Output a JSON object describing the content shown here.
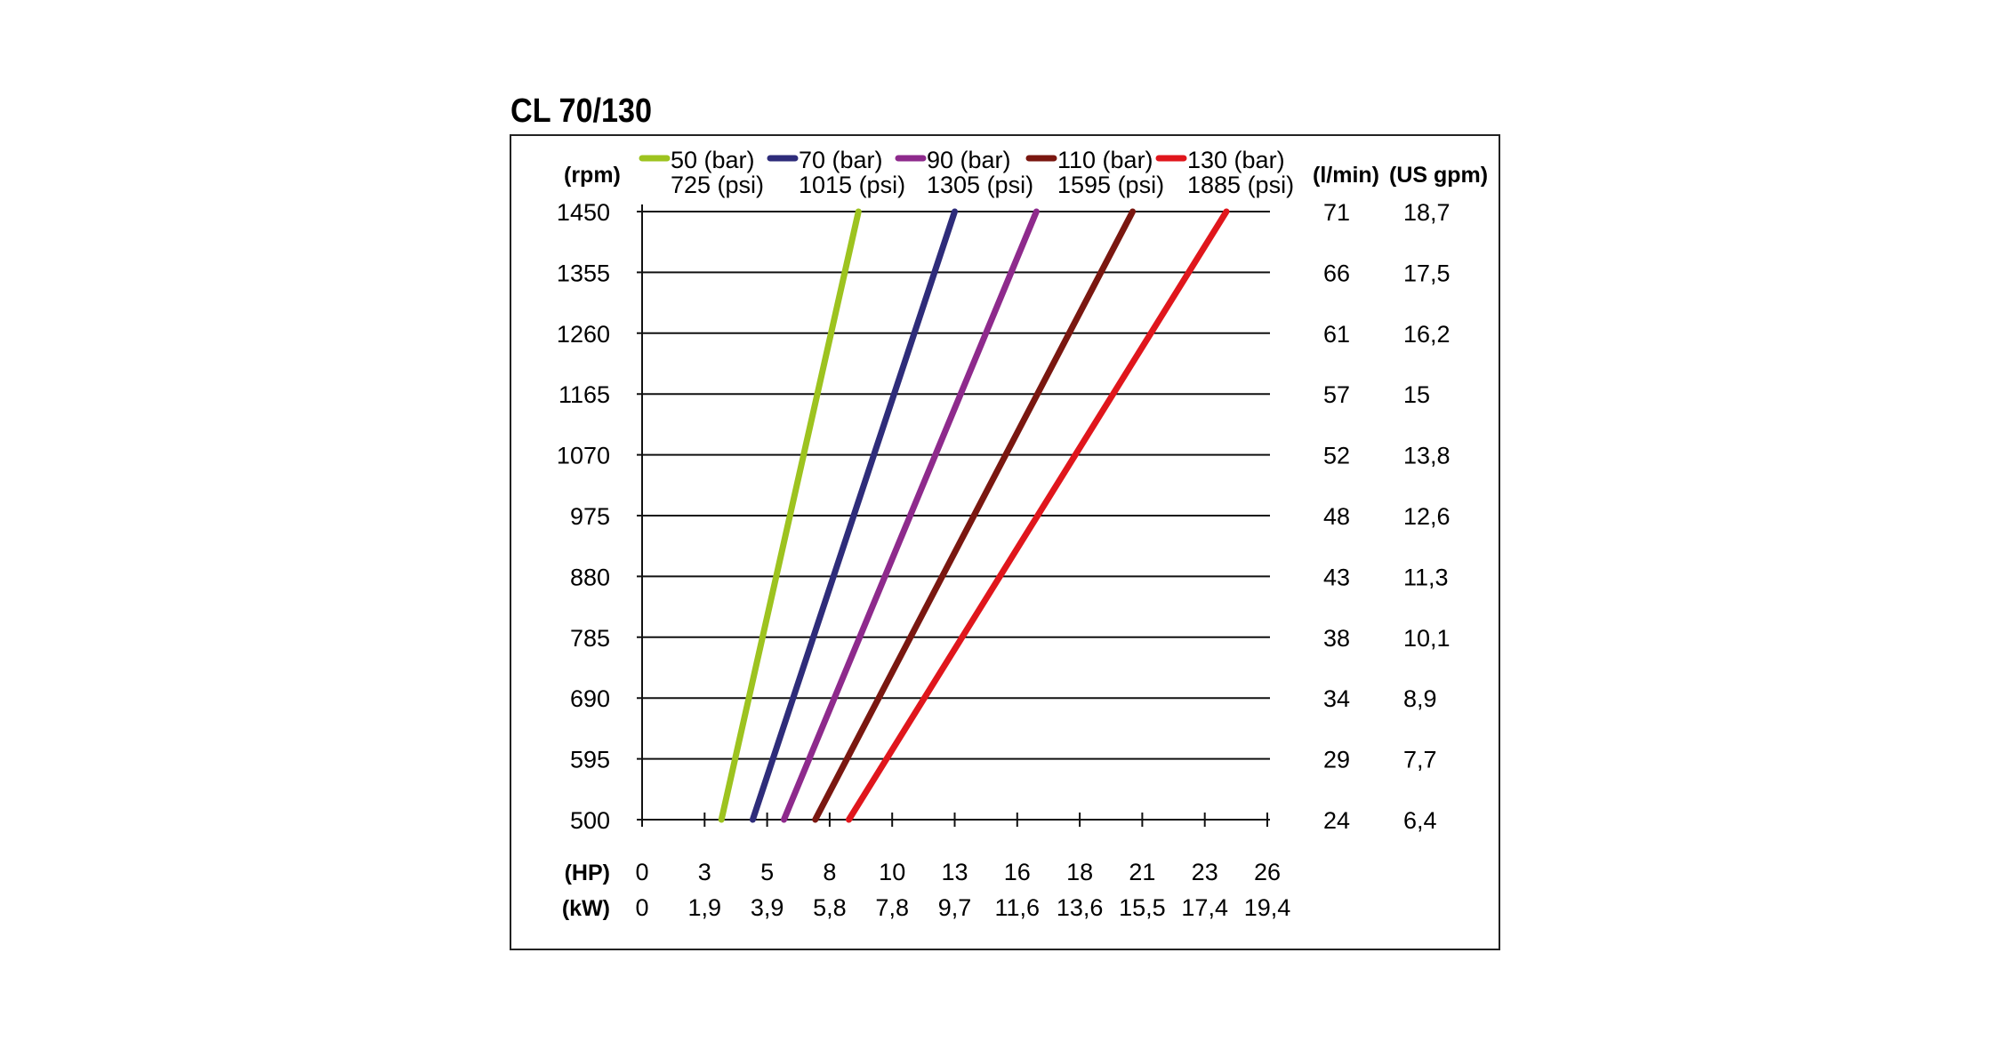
{
  "chart_data": {
    "type": "line",
    "title": "CL 70/130",
    "y_unit": "(rpm)",
    "y_ticks": [
      "1450",
      "1355",
      "1260",
      "1165",
      "1070",
      "975",
      "880",
      "785",
      "690",
      "595",
      "500"
    ],
    "ylim": [
      500,
      1450
    ],
    "right_unit_1": "(l/min)",
    "right_ticks_1": [
      "71",
      "66",
      "61",
      "57",
      "52",
      "48",
      "43",
      "38",
      "34",
      "29",
      "24"
    ],
    "right_unit_2": "(US gpm)",
    "right_ticks_2": [
      "18,7",
      "17,5",
      "16,2",
      "15",
      "13,8",
      "12,6",
      "11,3",
      "10,1",
      "8,9",
      "7,7",
      "6,4"
    ],
    "x_unit_1": "(HP)",
    "x_ticks_1": [
      "0",
      "3",
      "5",
      "8",
      "10",
      "13",
      "16",
      "18",
      "21",
      "23",
      "26"
    ],
    "x_unit_2": "(kW)",
    "x_ticks_2": [
      "0",
      "1,9",
      "3,9",
      "5,8",
      "7,8",
      "9,7",
      "11,6",
      "13,6",
      "15,5",
      "17,4",
      "19,4"
    ],
    "x_tick_values": [
      0,
      2.6,
      5.2,
      7.8,
      10.4,
      13.0,
      15.6,
      18.2,
      20.8,
      23.4,
      26.0
    ],
    "xlim": [
      0,
      26
    ],
    "grid": true,
    "legend_position": "top",
    "series": [
      {
        "name": "50 (bar)",
        "name2": "725 (psi)",
        "color": "#9dc31f",
        "points": [
          [
            3.3,
            500
          ],
          [
            9.0,
            1450
          ]
        ]
      },
      {
        "name": "70 (bar)",
        "name2": "1015 (psi)",
        "color": "#2e2c7a",
        "points": [
          [
            4.6,
            500
          ],
          [
            13.0,
            1450
          ]
        ]
      },
      {
        "name": "90 (bar)",
        "name2": "1305 (psi)",
        "color": "#8e2a8c",
        "points": [
          [
            5.9,
            500
          ],
          [
            16.4,
            1450
          ]
        ]
      },
      {
        "name": "110 (bar)",
        "name2": "1595 (psi)",
        "color": "#7a1710",
        "points": [
          [
            7.2,
            500
          ],
          [
            20.4,
            1450
          ]
        ]
      },
      {
        "name": "130 (bar)",
        "name2": "1885 (psi)",
        "color": "#e0161c",
        "points": [
          [
            8.6,
            500
          ],
          [
            24.3,
            1450
          ]
        ]
      }
    ]
  }
}
